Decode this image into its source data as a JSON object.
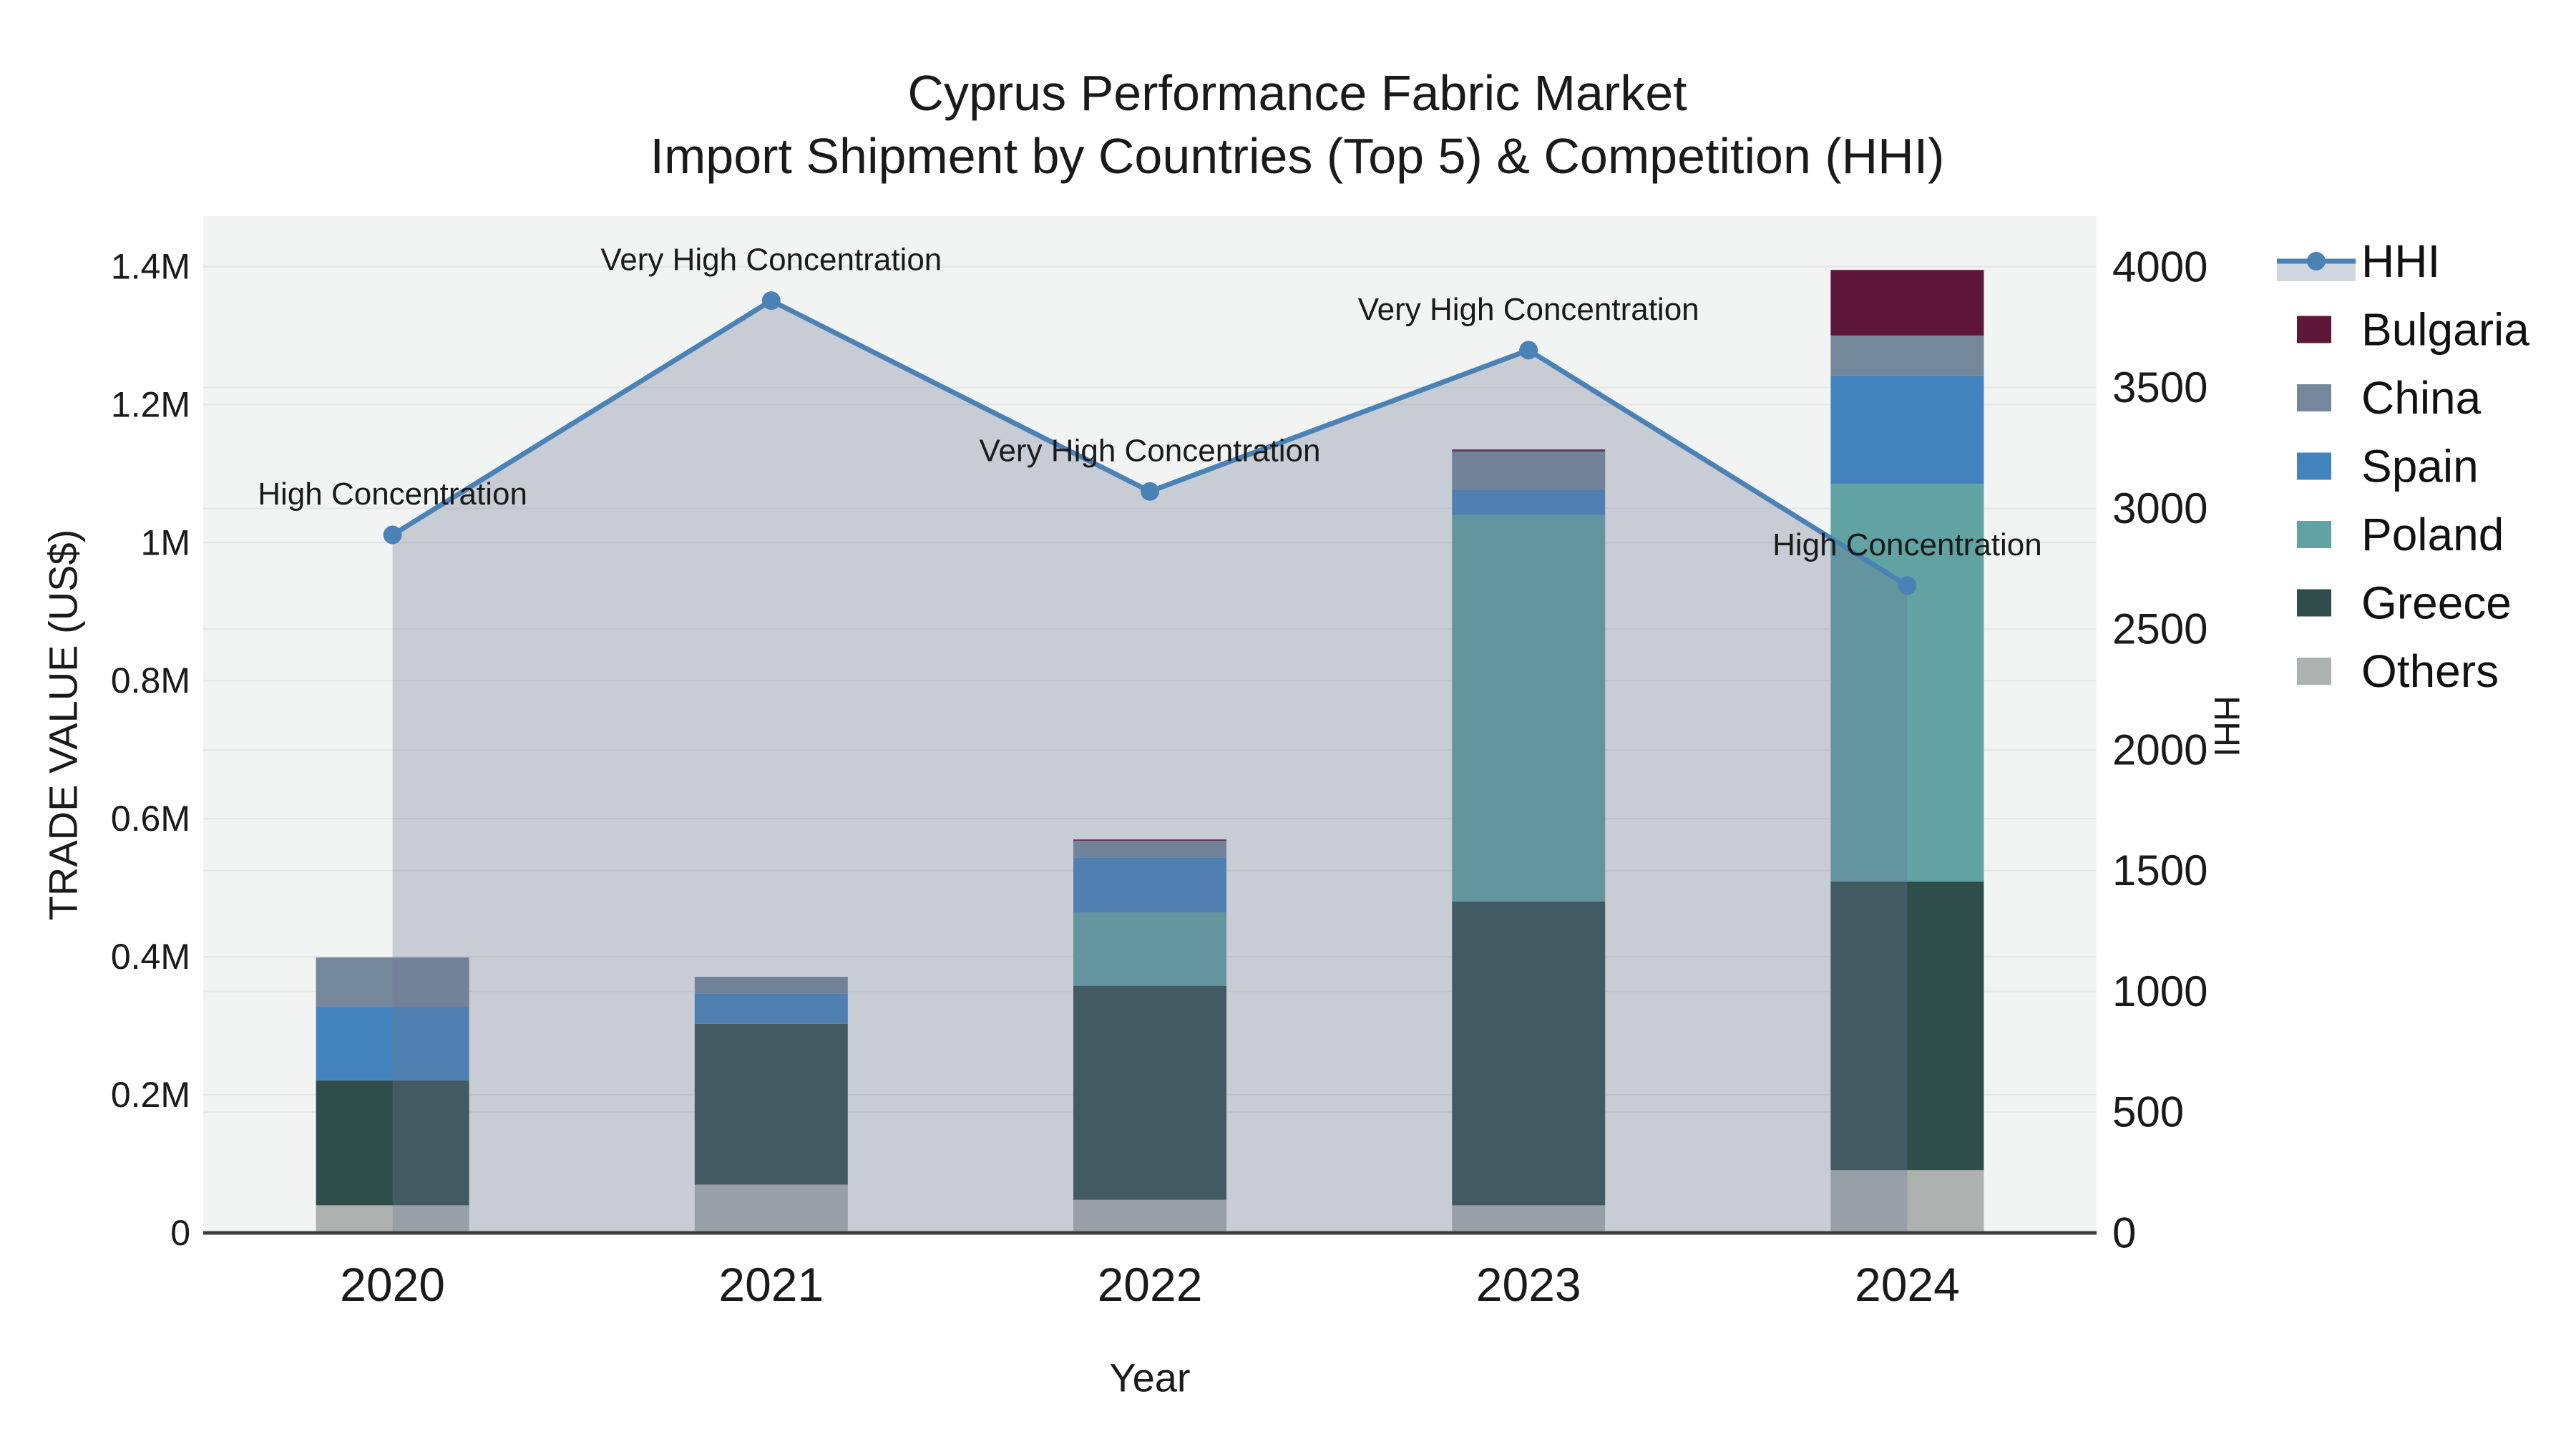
{
  "title": {
    "line1": "Cyprus Performance Fabric Market",
    "line2": "Import Shipment by Countries (Top 5) & Competition (HHI)"
  },
  "x_axis": {
    "title": "Year",
    "tick_labels": [
      "2020",
      "2021",
      "2022",
      "2023",
      "2024"
    ]
  },
  "y_axis": {
    "title": "TRADE VALUE (US$)",
    "tick_labels": [
      "0",
      "0.2M",
      "0.4M",
      "0.6M",
      "0.8M",
      "1M",
      "1.2M",
      "1.4M"
    ],
    "tick_values": [
      0,
      200000,
      400000,
      600000,
      800000,
      1000000,
      1200000,
      1400000
    ],
    "range": [
      0,
      1473000
    ]
  },
  "y2_axis": {
    "title": "HHI",
    "tick_labels": [
      "0",
      "500",
      "1000",
      "1500",
      "2000",
      "2500",
      "3000",
      "3500",
      "4000"
    ],
    "tick_values": [
      0,
      500,
      1000,
      1500,
      2000,
      2500,
      3000,
      3500,
      4000
    ],
    "range": [
      0,
      4210
    ]
  },
  "legend": {
    "items": [
      {
        "label": "HHI",
        "type": "line",
        "color": "#4a82b6",
        "fill": "#cfd6e0"
      },
      {
        "label": "Bulgaria",
        "type": "swatch",
        "color": "#5f1739"
      },
      {
        "label": "China",
        "type": "swatch",
        "color": "#75879b"
      },
      {
        "label": "Spain",
        "type": "swatch",
        "color": "#4383bd"
      },
      {
        "label": "Poland",
        "type": "swatch",
        "color": "#61a3a2"
      },
      {
        "label": "Greece",
        "type": "swatch",
        "color": "#2e4d4b"
      },
      {
        "label": "Others",
        "type": "swatch",
        "color": "#adb1b0"
      }
    ]
  },
  "chart_data": {
    "type": "combo: stacked bar (trade value US$) + line with area fill (HHI)",
    "categories": [
      "2020",
      "2021",
      "2022",
      "2023",
      "2024"
    ],
    "bar_series_bottom_to_top": [
      {
        "name": "Others",
        "color": "#adb1b0",
        "values": [
          40000,
          70000,
          48000,
          40000,
          91000
        ]
      },
      {
        "name": "Greece",
        "color": "#2e4d4b",
        "values": [
          181000,
          233000,
          310000,
          440000,
          418000
        ]
      },
      {
        "name": "Poland",
        "color": "#61a3a2",
        "values": [
          0,
          0,
          106000,
          560000,
          576000
        ]
      },
      {
        "name": "Spain",
        "color": "#4383bd",
        "values": [
          106000,
          44000,
          80000,
          36000,
          157000
        ]
      },
      {
        "name": "China",
        "color": "#75879b",
        "values": [
          72000,
          24000,
          24000,
          56000,
          58000
        ]
      },
      {
        "name": "Bulgaria",
        "color": "#5f1739",
        "values": [
          0,
          0,
          2000,
          3000,
          95000
        ]
      }
    ],
    "line_series": {
      "name": "HHI",
      "values": [
        2890,
        3860,
        3070,
        3655,
        2680
      ],
      "color": "#4a82b6",
      "area_fill": "rgba(108,122,150,0.32)"
    },
    "annotations": [
      {
        "x": "2020",
        "text": "High Concentration"
      },
      {
        "x": "2021",
        "text": "Very High Concentration"
      },
      {
        "x": "2022",
        "text": "Very High Concentration"
      },
      {
        "x": "2023",
        "text": "Very High Concentration"
      },
      {
        "x": "2024",
        "text": "High Concentration"
      }
    ],
    "layout_hints": {
      "plot_background": "#f2f3f3",
      "gridlines": "horizontal, both axes (0.2M steps and 500 HHI steps)",
      "gridline_color": "#e4e5e7",
      "axis_line_color": "#3d3d3d",
      "legend_position": "right"
    }
  }
}
